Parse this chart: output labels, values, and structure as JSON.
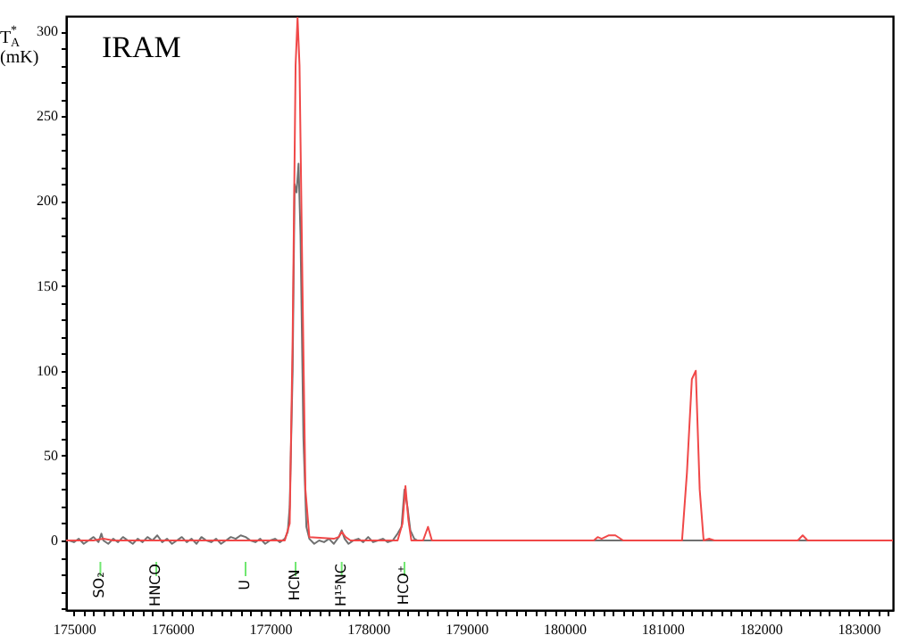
{
  "chart_data": {
    "type": "line",
    "title": "IRAM",
    "ylabel": "T$^{*}$$_{A}$ (mK)",
    "xlim": [
      174920,
      183350
    ],
    "ylim": [
      -41,
      309
    ],
    "xticks": [
      175000,
      {
        "value": 175100,
        "label": null
      },
      {
        "value": 175200,
        "label": null
      },
      {
        "value": 175300,
        "label": null
      },
      {
        "value": 175400,
        "label": null
      },
      {
        "value": 175500,
        "label": null
      },
      {
        "value": 175600,
        "label": null
      },
      {
        "value": 175700,
        "label": null
      },
      {
        "value": 175800,
        "label": null
      },
      {
        "value": 175900,
        "label": null
      },
      176000,
      {
        "value": 176100,
        "label": null
      },
      {
        "value": 176200,
        "label": null
      },
      {
        "value": 176300,
        "label": null
      },
      {
        "value": 176400,
        "label": null
      },
      {
        "value": 176500,
        "label": null
      },
      {
        "value": 176600,
        "label": null
      },
      {
        "value": 176700,
        "label": null
      },
      {
        "value": 176800,
        "label": null
      },
      {
        "value": 176900,
        "label": null
      },
      177000,
      {
        "value": 177100,
        "label": null
      },
      {
        "value": 177200,
        "label": null
      },
      {
        "value": 177300,
        "label": null
      },
      {
        "value": 177400,
        "label": null
      },
      {
        "value": 177500,
        "label": null
      },
      {
        "value": 177600,
        "label": null
      },
      {
        "value": 177700,
        "label": null
      },
      {
        "value": 177800,
        "label": null
      },
      {
        "value": 177900,
        "label": null
      },
      178000,
      {
        "value": 178100,
        "label": null
      },
      {
        "value": 178200,
        "label": null
      },
      {
        "value": 178300,
        "label": null
      },
      {
        "value": 178400,
        "label": null
      },
      {
        "value": 178500,
        "label": null
      },
      {
        "value": 178600,
        "label": null
      },
      {
        "value": 178700,
        "label": null
      },
      {
        "value": 178800,
        "label": null
      },
      {
        "value": 178900,
        "label": null
      },
      179000,
      {
        "value": 179100,
        "label": null
      },
      {
        "value": 179200,
        "label": null
      },
      {
        "value": 179300,
        "label": null
      },
      {
        "value": 179400,
        "label": null
      },
      {
        "value": 179500,
        "label": null
      },
      {
        "value": 179600,
        "label": null
      },
      {
        "value": 179700,
        "label": null
      },
      {
        "value": 179800,
        "label": null
      },
      {
        "value": 179900,
        "label": null
      },
      180000,
      {
        "value": 180100,
        "label": null
      },
      {
        "value": 180200,
        "label": null
      },
      {
        "value": 180300,
        "label": null
      },
      {
        "value": 180400,
        "label": null
      },
      {
        "value": 180500,
        "label": null
      },
      {
        "value": 180600,
        "label": null
      },
      {
        "value": 180700,
        "label": null
      },
      {
        "value": 180800,
        "label": null
      },
      {
        "value": 180900,
        "label": null
      },
      181000,
      {
        "value": 181100,
        "label": null
      },
      {
        "value": 181200,
        "label": null
      },
      {
        "value": 181300,
        "label": null
      },
      {
        "value": 181400,
        "label": null
      },
      {
        "value": 181500,
        "label": null
      },
      {
        "value": 181600,
        "label": null
      },
      {
        "value": 181700,
        "label": null
      },
      {
        "value": 181800,
        "label": null
      },
      {
        "value": 181900,
        "label": null
      },
      182000,
      {
        "value": 182100,
        "label": null
      },
      {
        "value": 182200,
        "label": null
      },
      {
        "value": 182300,
        "label": null
      },
      {
        "value": 182400,
        "label": null
      },
      {
        "value": 182500,
        "label": null
      },
      {
        "value": 182600,
        "label": null
      },
      {
        "value": 182700,
        "label": null
      },
      {
        "value": 182800,
        "label": null
      },
      {
        "value": 182900,
        "label": null
      },
      183000,
      {
        "value": 183100,
        "label": null
      },
      {
        "value": 183200,
        "label": null
      },
      {
        "value": 183300,
        "label": null
      }
    ],
    "yticks": [
      {
        "value": -40,
        "label": null
      },
      {
        "value": -30,
        "label": null
      },
      {
        "value": -20,
        "label": null
      },
      {
        "value": -10,
        "label": null
      },
      0,
      {
        "value": 10,
        "label": null
      },
      {
        "value": 20,
        "label": null
      },
      {
        "value": 30,
        "label": null
      },
      {
        "value": 40,
        "label": null
      },
      50,
      {
        "value": 60,
        "label": null
      },
      {
        "value": 70,
        "label": null
      },
      {
        "value": 80,
        "label": null
      },
      {
        "value": 90,
        "label": null
      },
      100,
      {
        "value": 110,
        "label": null
      },
      {
        "value": 120,
        "label": null
      },
      {
        "value": 130,
        "label": null
      },
      {
        "value": 140,
        "label": null
      },
      150,
      {
        "value": 160,
        "label": null
      },
      {
        "value": 170,
        "label": null
      },
      {
        "value": 180,
        "label": null
      },
      {
        "value": 190,
        "label": null
      },
      200,
      {
        "value": 210,
        "label": null
      },
      {
        "value": 220,
        "label": null
      },
      {
        "value": 230,
        "label": null
      },
      {
        "value": 240,
        "label": null
      },
      250,
      {
        "value": 260,
        "label": null
      },
      {
        "value": 270,
        "label": null
      },
      {
        "value": 280,
        "label": null
      },
      {
        "value": 290,
        "label": null
      },
      300
    ],
    "grid": false,
    "marker": "none",
    "line_style": "solid",
    "series": [
      {
        "color": "#707070",
        "x": [
          174950,
          175000,
          175050,
          175100,
          175150,
          175200,
          175250,
          175280,
          175300,
          175350,
          175400,
          175450,
          175500,
          175550,
          175600,
          175650,
          175700,
          175750,
          175800,
          175850,
          175900,
          175950,
          176000,
          176050,
          176100,
          176150,
          176200,
          176250,
          176300,
          176350,
          176400,
          176450,
          176500,
          176550,
          176600,
          176650,
          176700,
          176750,
          176800,
          176850,
          176900,
          176950,
          177000,
          177050,
          177100,
          177150,
          177180,
          177200,
          177230,
          177250,
          177270,
          177290,
          177310,
          177340,
          177370,
          177400,
          177450,
          177500,
          177550,
          177600,
          177650,
          177700,
          177730,
          177760,
          177800,
          177850,
          177900,
          177950,
          178000,
          178050,
          178100,
          178150,
          178200,
          178250,
          178300,
          178340,
          178370,
          178400,
          178430,
          178470,
          178500,
          178550,
          178600,
          183350
        ],
        "values": [
          0,
          -1,
          1,
          -2,
          0,
          2,
          -1,
          4,
          0,
          -2,
          1,
          -1,
          2,
          0,
          -2,
          1,
          -1,
          2,
          0,
          3,
          -1,
          1,
          -2,
          0,
          2,
          -1,
          1,
          -2,
          2,
          0,
          -1,
          1,
          -2,
          0,
          2,
          1,
          3,
          2,
          0,
          -1,
          1,
          -2,
          0,
          1,
          -1,
          1,
          5,
          20,
          100,
          210,
          205,
          222,
          180,
          60,
          8,
          1,
          -2,
          0,
          -1,
          1,
          -2,
          2,
          6,
          1,
          -2,
          0,
          1,
          -1,
          2,
          -1,
          0,
          1,
          -1,
          0,
          4,
          8,
          30,
          20,
          6,
          1,
          0,
          0,
          0,
          0
        ]
      },
      {
        "color": "#f04848",
        "x": [
          174920,
          175200,
          175300,
          175400,
          177150,
          177200,
          177230,
          177260,
          177280,
          177300,
          177330,
          177360,
          177400,
          177650,
          177700,
          177730,
          177770,
          177820,
          178300,
          178350,
          178380,
          178410,
          178440,
          178560,
          178610,
          178650,
          180300,
          180340,
          180380,
          180450,
          180520,
          180600,
          181200,
          181250,
          181300,
          181340,
          181380,
          181420,
          181480,
          181530,
          182380,
          182430,
          182480,
          183350
        ],
        "values": [
          0,
          0,
          1,
          0,
          0,
          10,
          120,
          280,
          308,
          280,
          150,
          30,
          2,
          1,
          2,
          5,
          2,
          0,
          0,
          10,
          32,
          12,
          0,
          0,
          8,
          0,
          0,
          2,
          1,
          3,
          3,
          0,
          0,
          40,
          95,
          100,
          30,
          0,
          1,
          0,
          0,
          3,
          0,
          0
        ]
      }
    ],
    "ref_lines": [
      {
        "axis": "x",
        "value": 175270,
        "label": "SO₂",
        "color": "#33dd33"
      },
      {
        "axis": "x",
        "value": 175840,
        "label": "HNCO",
        "color": "#33dd33"
      },
      {
        "axis": "x",
        "value": 176750,
        "label": "U",
        "color": "#33dd33"
      },
      {
        "axis": "x",
        "value": 177260,
        "label": "HCN",
        "color": "#33dd33"
      },
      {
        "axis": "x",
        "value": 177730,
        "label": "H¹⁵NC",
        "color": "#33dd33"
      },
      {
        "axis": "x",
        "value": 178370,
        "label": "HCO⁺",
        "color": "#33dd33"
      }
    ]
  }
}
